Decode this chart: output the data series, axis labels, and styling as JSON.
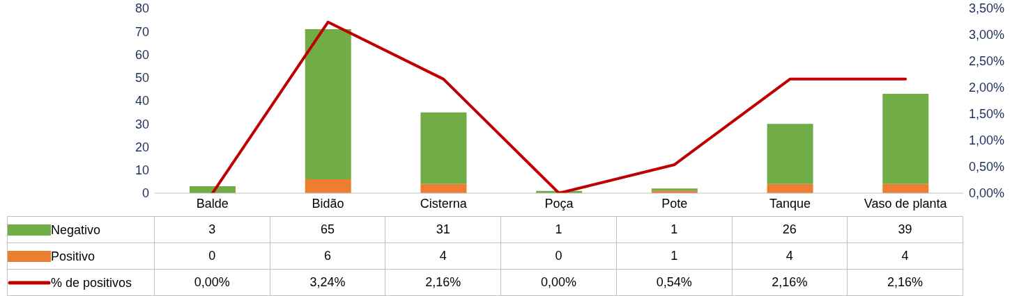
{
  "chart_data": {
    "type": "bar",
    "stacked": true,
    "categories": [
      "Balde",
      "Bidão",
      "Cisterna",
      "Poça",
      "Pote",
      "Tanque",
      "Vaso de planta"
    ],
    "series": [
      {
        "name": "Positivo",
        "color": "#ed7d31",
        "values": [
          0,
          6,
          4,
          0,
          1,
          4,
          4
        ],
        "value_labels": [
          "0",
          "6",
          "4",
          "0",
          "1",
          "4",
          "4"
        ]
      },
      {
        "name": "Negativo",
        "color": "#70ad47",
        "values": [
          3,
          65,
          31,
          1,
          1,
          26,
          39
        ],
        "value_labels": [
          "3",
          "65",
          "31",
          "1",
          "1",
          "26",
          "39"
        ]
      },
      {
        "name": "% de positivos",
        "type": "line",
        "axis": "y2",
        "color": "#c00000",
        "marker": "none",
        "line_style": "solid",
        "values": [
          0,
          3.24,
          2.16,
          0,
          0.54,
          2.16,
          2.16
        ],
        "value_labels": [
          "0,00%",
          "3,24%",
          "2,16%",
          "0,00%",
          "0,54%",
          "2,16%",
          "2,16%"
        ]
      }
    ],
    "ylim": [
      0,
      80
    ],
    "yticks": [
      0,
      10,
      20,
      30,
      40,
      50,
      60,
      70,
      80
    ],
    "y2lim": [
      0,
      3.5
    ],
    "y2ticks": [
      {
        "value": 0,
        "label": "0,00%"
      },
      {
        "value": 0.5,
        "label": "0,50%"
      },
      {
        "value": 1,
        "label": "1,00%"
      },
      {
        "value": 1.5,
        "label": "1,50%"
      },
      {
        "value": 2,
        "label": "2,00%"
      },
      {
        "value": 2.5,
        "label": "2,50%"
      },
      {
        "value": 3,
        "label": "3,00%"
      },
      {
        "value": 3.5,
        "label": "3,50%"
      }
    ],
    "legend": "bottom"
  }
}
